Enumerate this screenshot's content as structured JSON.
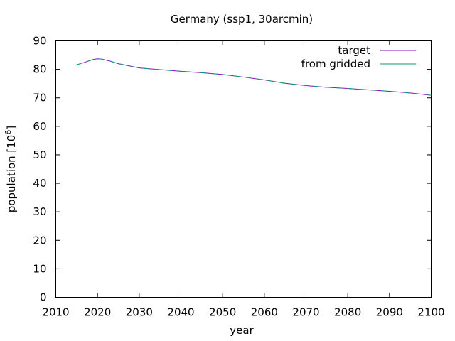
{
  "chart_data": {
    "type": "line",
    "title": "Germany (ssp1, 30arcmin)",
    "xlabel": "year",
    "ylabel": "population [10",
    "ylabel_sup": "6",
    "ylabel_suffix": "]",
    "xlim": [
      2010,
      2100
    ],
    "ylim": [
      0,
      90
    ],
    "xticks": [
      "2010",
      "2020",
      "2030",
      "2040",
      "2050",
      "2060",
      "2070",
      "2080",
      "2090",
      "2100"
    ],
    "yticks": [
      "0",
      "10",
      "20",
      "30",
      "40",
      "50",
      "60",
      "70",
      "80",
      "90"
    ],
    "grid": false,
    "legend_position": "top-right",
    "series": [
      {
        "name": "target",
        "color": "#9400d3",
        "x": [
          2015,
          2017,
          2019,
          2020,
          2021,
          2023,
          2025,
          2030,
          2035,
          2040,
          2045,
          2050,
          2055,
          2060,
          2065,
          2070,
          2075,
          2080,
          2085,
          2090,
          2095,
          2100
        ],
        "y": [
          81.6,
          82.5,
          83.5,
          83.7,
          83.6,
          82.9,
          82.0,
          80.5,
          79.9,
          79.3,
          78.8,
          78.2,
          77.3,
          76.3,
          75.1,
          74.3,
          73.7,
          73.3,
          72.8,
          72.3,
          71.7,
          70.9
        ]
      },
      {
        "name": "from gridded",
        "color": "#009e73",
        "x": [
          2015,
          2017,
          2019,
          2020,
          2021,
          2023,
          2025,
          2030,
          2035,
          2040,
          2045,
          2050,
          2055,
          2060,
          2065,
          2070,
          2075,
          2080,
          2085,
          2090,
          2095,
          2100
        ],
        "y": [
          81.6,
          82.5,
          83.5,
          83.7,
          83.6,
          82.9,
          82.0,
          80.5,
          79.9,
          79.3,
          78.8,
          78.2,
          77.3,
          76.3,
          75.1,
          74.3,
          73.7,
          73.3,
          72.8,
          72.3,
          71.7,
          70.9
        ]
      }
    ]
  }
}
